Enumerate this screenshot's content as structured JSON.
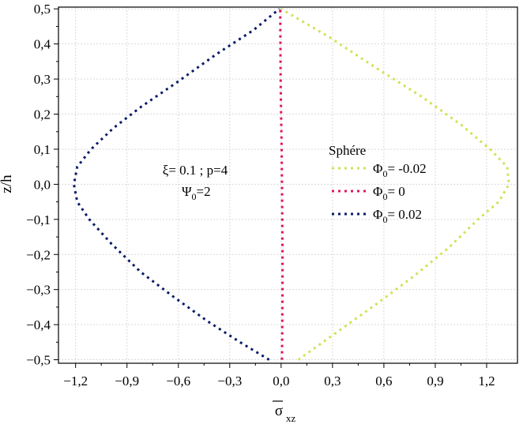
{
  "chart_data": {
    "type": "line",
    "xlabel": "σxz",
    "ylabel": "z/h",
    "xlim": [
      -1.3,
      1.38
    ],
    "ylim": [
      -0.51,
      0.505
    ],
    "grid": true,
    "x_ticks": [
      -1.2,
      -0.9,
      -0.6,
      -0.3,
      0.0,
      0.3,
      0.6,
      0.9,
      1.2
    ],
    "x_tick_labels": [
      "−1,2",
      "−0,9",
      "−0,6",
      "−0,3",
      "0,0",
      "0,3",
      "0,6",
      "0,9",
      "1,2"
    ],
    "y_ticks": [
      -0.5,
      -0.4,
      -0.3,
      -0.2,
      -0.1,
      0.0,
      0.1,
      0.2,
      0.3,
      0.4,
      0.5
    ],
    "y_tick_labels": [
      "−0,5",
      "−0,4",
      "−0,3",
      "−0,2",
      "−0,1",
      "0,0",
      "0,1",
      "0,2",
      "0,3",
      "0,4",
      "0,5"
    ],
    "legend": {
      "title": "Sphére",
      "placement": "right",
      "entries": [
        {
          "symbol": "Φ",
          "sub": "0",
          "text": "= -0.02"
        },
        {
          "symbol": "Φ",
          "sub": "0",
          "text": "= 0"
        },
        {
          "symbol": "Φ",
          "sub": "0",
          "text": "= 0.02"
        }
      ]
    },
    "annotation": {
      "line1": "ξ= 0.1 ; p=4",
      "line2_symbol": "Ψ",
      "line2_sub": "0",
      "line2_text": "=2"
    },
    "series": [
      {
        "name": "Φ0= -0.02",
        "color": "#d4e157",
        "x": [
          0.1,
          0.33,
          0.56,
          0.78,
          0.98,
          1.15,
          1.27,
          1.33,
          1.32,
          1.22,
          1.05,
          0.82,
          0.56,
          0.28,
          0.0
        ],
        "y": [
          -0.5,
          -0.42,
          -0.34,
          -0.26,
          -0.18,
          -0.1,
          -0.05,
          0.0,
          0.05,
          0.1,
          0.17,
          0.25,
          0.33,
          0.42,
          0.5
        ]
      },
      {
        "name": "Φ0= 0",
        "color": "#e0155f",
        "x": [
          0.005,
          0.007,
          0.008,
          0.008,
          0.007,
          0.005,
          0.003,
          0.0,
          -0.003,
          -0.005
        ],
        "y": [
          -0.5,
          -0.4,
          -0.3,
          -0.2,
          -0.1,
          0.0,
          0.1,
          0.2,
          0.3,
          0.5
        ]
      },
      {
        "name": "Φ0= 0.02",
        "color": "#0a1a66",
        "x": [
          -0.07,
          -0.24,
          -0.43,
          -0.63,
          -0.82,
          -0.99,
          -1.12,
          -1.19,
          -1.21,
          -1.19,
          -1.11,
          -0.98,
          -0.82,
          -0.61,
          -0.38,
          -0.16,
          -0.01
        ],
        "y": [
          -0.5,
          -0.45,
          -0.39,
          -0.32,
          -0.25,
          -0.17,
          -0.1,
          -0.05,
          0.0,
          0.05,
          0.1,
          0.16,
          0.22,
          0.29,
          0.37,
          0.44,
          0.5
        ]
      }
    ]
  }
}
